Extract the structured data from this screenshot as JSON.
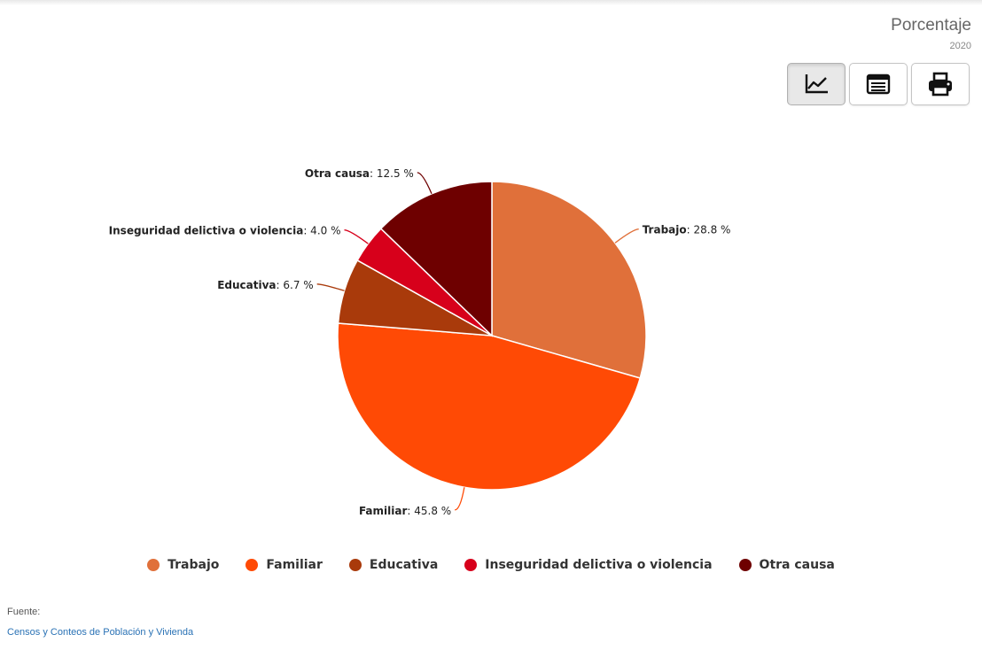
{
  "header": {
    "unit": "Porcentaje",
    "year": "2020"
  },
  "toolbar": {
    "buttons": [
      {
        "name": "chart-view-button",
        "icon": "line-chart-icon",
        "active": true
      },
      {
        "name": "table-view-button",
        "icon": "table-icon",
        "active": false
      },
      {
        "name": "print-button",
        "icon": "printer-icon",
        "active": false
      }
    ]
  },
  "chart_data": {
    "type": "pie",
    "title": "",
    "slices": [
      {
        "name": "Trabajo",
        "value": 28.8,
        "label": "28.8 %",
        "color": "#e0703a"
      },
      {
        "name": "Familiar",
        "value": 45.8,
        "label": "45.8 %",
        "color": "#ff4a05"
      },
      {
        "name": "Educativa",
        "value": 6.7,
        "label": "6.7 %",
        "color": "#a93a0b"
      },
      {
        "name": "Inseguridad delictiva o violencia",
        "value": 4.0,
        "label": "4.0 %",
        "color": "#d7001b"
      },
      {
        "name": "Otra causa",
        "value": 12.5,
        "label": "12.5 %",
        "color": "#6e0000"
      }
    ],
    "start": "12 o'clock, clockwise",
    "legend_position": "bottom"
  },
  "footer": {
    "source_label": "Fuente:",
    "source_link": "Censos y Conteos de Población y Vivienda"
  }
}
